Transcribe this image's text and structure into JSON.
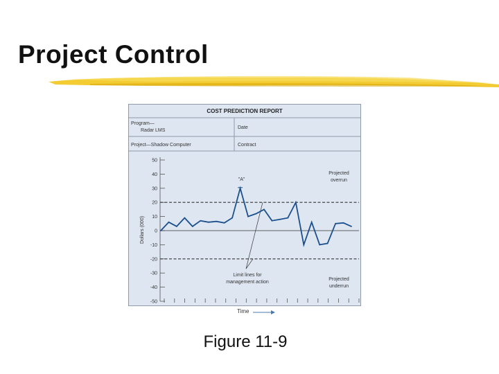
{
  "slide": {
    "title": "Project Control",
    "caption": "Figure 11-9",
    "accent_color": "#f2c51c"
  },
  "report": {
    "header": "COST PREDICTION REPORT",
    "program_line1": "Program—",
    "program_line2": "Radar LMS",
    "date_label": "Date",
    "project_label": "Project—Shadow Computer",
    "contract_label": "Contract",
    "background_color": "#dde6f1",
    "line_color": "#1b4f8c"
  },
  "chart_data": {
    "type": "line",
    "title": "",
    "xlabel": "Time",
    "ylabel": "Dollars (000)",
    "ylim": [
      -50,
      50
    ],
    "yticks": [
      50,
      40,
      30,
      20,
      10,
      0,
      -10,
      -20,
      -30,
      -40,
      -50
    ],
    "x_tick_count": 20,
    "grid": false,
    "series": [
      {
        "values": [
          [
            0,
            0
          ],
          [
            1,
            6
          ],
          [
            2,
            3
          ],
          [
            3,
            9
          ],
          [
            4,
            3
          ],
          [
            5,
            7
          ],
          [
            6,
            6
          ],
          [
            7,
            6.5
          ],
          [
            8,
            5.5
          ],
          [
            9,
            9
          ],
          [
            10,
            30
          ],
          [
            11,
            10
          ],
          [
            12,
            12
          ],
          [
            13,
            15
          ],
          [
            14,
            7
          ],
          [
            15,
            8
          ],
          [
            16,
            9
          ],
          [
            17,
            20
          ],
          [
            18,
            -10
          ],
          [
            19,
            6
          ],
          [
            20,
            -10
          ],
          [
            21,
            -9
          ],
          [
            22,
            5
          ],
          [
            23,
            5.5
          ],
          [
            24,
            3
          ]
        ]
      }
    ],
    "reference_lines": [
      {
        "y": 20,
        "style": "dashed"
      },
      {
        "y": 0,
        "style": "solid"
      },
      {
        "y": -20,
        "style": "dashed"
      }
    ],
    "annotations": [
      {
        "text": "\"A\"",
        "x": 10,
        "y": 30
      },
      {
        "text": "Projected",
        "text2": "overrun"
      },
      {
        "text": "Projected",
        "text2": "underrun"
      },
      {
        "text": "Limit lines for",
        "text2": "management action"
      }
    ]
  }
}
